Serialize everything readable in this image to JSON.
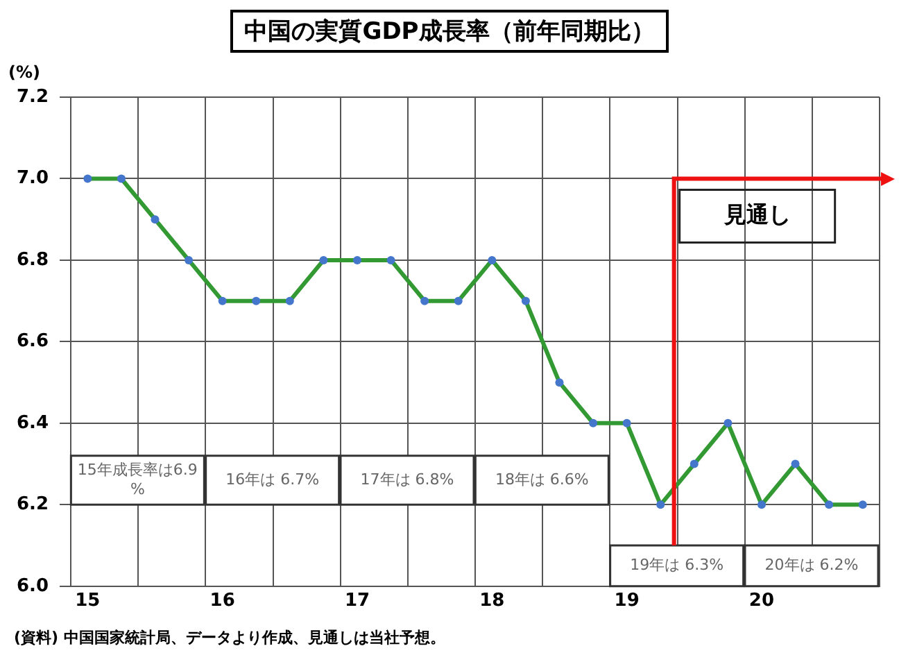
{
  "chart_data": {
    "type": "line",
    "title": "中国の実質GDP成長率（前年同期比）",
    "ylabel": "(%)",
    "x": [
      15,
      15.25,
      15.5,
      15.75,
      16,
      16.25,
      16.5,
      16.75,
      17,
      17.25,
      17.5,
      17.75,
      18,
      18.25,
      18.5,
      18.75,
      19,
      19.25,
      19.5,
      19.75,
      20,
      20.25,
      20.5,
      20.75
    ],
    "series": [
      {
        "color": "#339933",
        "values": [
          7.0,
          7.0,
          6.9,
          6.8,
          6.7,
          6.7,
          6.7,
          6.8,
          6.8,
          6.8,
          6.7,
          6.7,
          6.8,
          6.7,
          6.5,
          6.4,
          6.4,
          6.2,
          6.3,
          6.4,
          6.2,
          6.3,
          6.2,
          6.2
        ]
      }
    ],
    "marker": "circle",
    "grid": true,
    "legend": false,
    "xlim": [
      14.875,
      20.875
    ],
    "xticks": [
      {
        "value": 14.875,
        "label": null
      },
      15,
      {
        "value": 15.375,
        "label": null
      },
      {
        "value": 15.875,
        "label": null
      },
      16,
      {
        "value": 16.375,
        "label": null
      },
      {
        "value": 16.875,
        "label": null
      },
      17,
      {
        "value": 17.375,
        "label": null
      },
      {
        "value": 17.875,
        "label": null
      },
      18,
      {
        "value": 18.375,
        "label": null
      },
      {
        "value": 18.875,
        "label": null
      },
      19,
      {
        "value": 19.375,
        "label": null
      },
      {
        "value": 19.875,
        "label": null
      },
      20,
      {
        "value": 20.375,
        "label": null
      },
      {
        "value": 20.875,
        "label": null
      }
    ],
    "ylim": [
      6.0,
      7.2
    ],
    "yticks": [
      {
        "value": 6.0,
        "label": "6.0"
      },
      {
        "value": 6.2,
        "label": "6.2"
      },
      {
        "value": 6.4,
        "label": "6.4"
      },
      {
        "value": 6.6,
        "label": "6.6"
      },
      {
        "value": 6.8,
        "label": "6.8"
      },
      {
        "value": 7.0,
        "label": "7.0"
      },
      {
        "value": 7.2,
        "label": "7.2"
      }
    ],
    "ref_lines": [
      {
        "axis": "x",
        "value": 19.35,
        "label": "見通し",
        "color": "#ee1111"
      }
    ],
    "annotations": [
      "15年成長率は6.9%",
      "16年は 6.7%",
      "17年は 6.8%",
      "18年は 6.6%",
      "19年は 6.3%",
      "20年は 6.2%",
      "(資料) 中国国家統計局、データより作成、見通しは当社予想。"
    ]
  }
}
